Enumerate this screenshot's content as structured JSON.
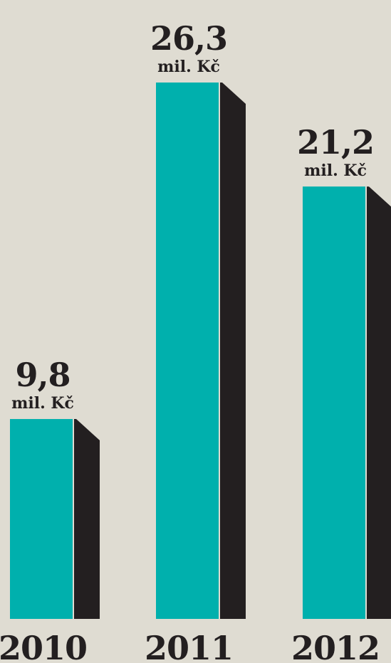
{
  "colors": {
    "background": "#dfdcd2",
    "bar_front": "#00b0ad",
    "bar_side": "#231f20"
  },
  "chart_data": {
    "type": "bar",
    "title": "",
    "xlabel": "",
    "ylabel": "",
    "categories": [
      "2010",
      "2011",
      "2012"
    ],
    "values": [
      9.8,
      26.3,
      21.2
    ],
    "value_labels": [
      "9,8",
      "26,3",
      "21,2"
    ],
    "unit_label": "mil. Kč",
    "ylim": [
      0,
      26.3
    ],
    "grid": false,
    "legend": "none"
  }
}
